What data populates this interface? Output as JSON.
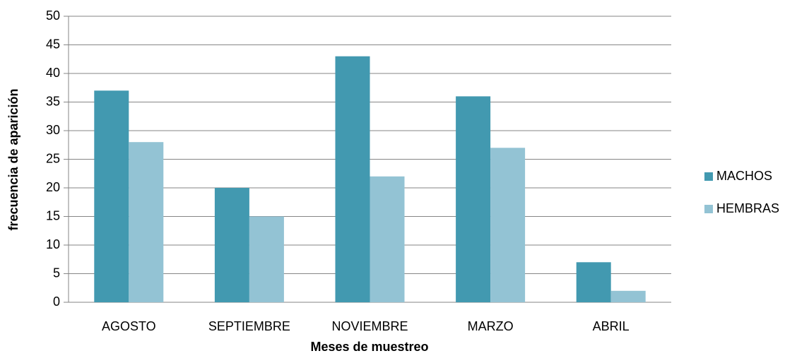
{
  "chart_data": {
    "type": "bar",
    "xlabel": "Meses de muestreo",
    "ylabel": "frecuencia de aparición",
    "categories": [
      "AGOSTO",
      "SEPTIEMBRE",
      "NOVIEMBRE",
      "MARZO",
      "ABRIL"
    ],
    "series": [
      {
        "name": "MACHOS",
        "color": "#4299b0",
        "values": [
          37,
          20,
          43,
          36,
          7
        ]
      },
      {
        "name": "HEMBRAS",
        "color": "#93c3d4",
        "values": [
          28,
          15,
          22,
          27,
          2
        ]
      }
    ],
    "ylim": [
      0,
      50
    ],
    "yticks": [
      0,
      5,
      10,
      15,
      20,
      25,
      30,
      35,
      40,
      45,
      50
    ],
    "grid": true,
    "legend": "right"
  }
}
